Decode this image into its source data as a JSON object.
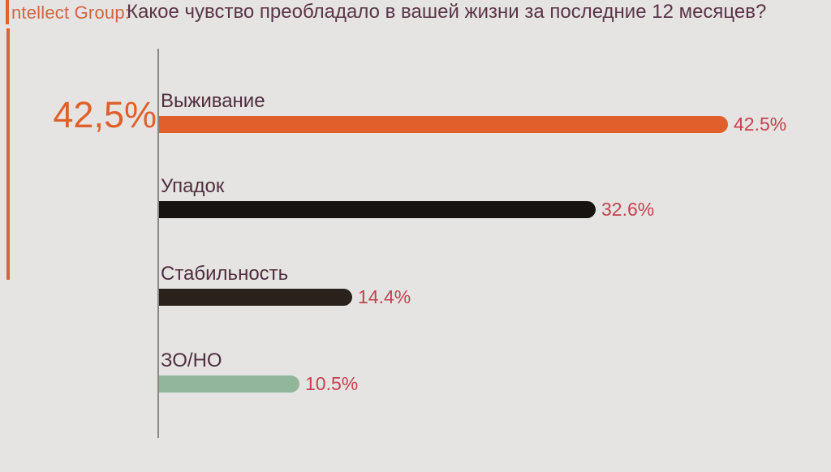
{
  "header": {
    "logo_text": "ntellect Group:",
    "title": "Какое чувство преобладало в вашей жизни за последние 12 месяцев?"
  },
  "highlight": {
    "value_label": "42,5%"
  },
  "chart_data": {
    "type": "bar",
    "orientation": "horizontal",
    "title": "Какое чувство преобладало в вашей жизни за последние 12 месяцев?",
    "categories": [
      "Выживание",
      "Упадок",
      "Стабильность",
      "ЗО/НО"
    ],
    "values": [
      42.5,
      32.6,
      14.4,
      10.5
    ],
    "value_labels": [
      "42.5%",
      "32.6%",
      "14.4%",
      "10.5%"
    ],
    "bar_colors": [
      "#e05f2b",
      "#161310",
      "#28211c",
      "#92b69c"
    ],
    "xlim": [
      0,
      45
    ],
    "grid": false,
    "legend": false
  },
  "colors": {
    "background": "#e6e4e2",
    "accent_orange": "#e0602b",
    "logo_orange": "#cf6740",
    "label_plum": "#4f2e3f",
    "title_plum": "#5a3548",
    "value_red": "#c5414f",
    "axis_gray": "#8b8781"
  }
}
